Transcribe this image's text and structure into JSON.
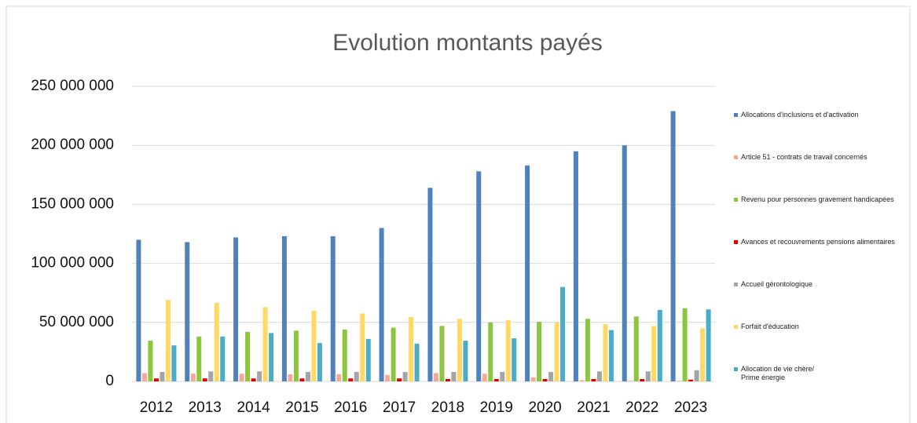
{
  "chart_data": {
    "type": "bar",
    "title": "Evolution montants payés",
    "categories": [
      "2012",
      "2013",
      "2014",
      "2015",
      "2016",
      "2017",
      "2018",
      "2019",
      "2020",
      "2021",
      "2022",
      "2023"
    ],
    "series": [
      {
        "name": "Allocations d'inclusions et d'activation",
        "color": "#4f81bd",
        "values": [
          120000000,
          118000000,
          122000000,
          123000000,
          123000000,
          130000000,
          164000000,
          178000000,
          183000000,
          195000000,
          200000000,
          229000000
        ]
      },
      {
        "name": "Article 51 - contrats de travail concernés",
        "color": "#f4a994",
        "values": [
          7000000,
          6500000,
          6500000,
          6000000,
          6000000,
          5500000,
          7000000,
          6500000,
          3500000,
          1000000,
          500000,
          500000
        ]
      },
      {
        "name": "Revenu pour personnes gravement handicapées",
        "color": "#8cc63f",
        "values": [
          34500000,
          38000000,
          42000000,
          43000000,
          44000000,
          45500000,
          47000000,
          50000000,
          50500000,
          53000000,
          55000000,
          62000000
        ]
      },
      {
        "name": "Avances et recouvrements pensions alimentaires",
        "color": "#e00000",
        "values": [
          2500000,
          2500000,
          2500000,
          2500000,
          2500000,
          2500000,
          2000000,
          2000000,
          2000000,
          2000000,
          2000000,
          1500000
        ]
      },
      {
        "name": "Accueil gérontologique",
        "color": "#a5a5a5",
        "values": [
          8000000,
          8500000,
          8500000,
          8000000,
          8000000,
          8000000,
          8000000,
          8000000,
          8000000,
          8500000,
          8500000,
          9500000
        ]
      },
      {
        "name": "Forfait d'éducation",
        "color": "#ffd966",
        "values": [
          69000000,
          66500000,
          63000000,
          60000000,
          57500000,
          54500000,
          53000000,
          52000000,
          50000000,
          48500000,
          47000000,
          45000000
        ]
      },
      {
        "name": "Allocation de vie chère/\nPrime énergie",
        "color": "#4bacc6",
        "values": [
          30500000,
          38000000,
          41000000,
          32500000,
          36000000,
          32000000,
          34500000,
          36500000,
          80000000,
          43500000,
          60500000,
          61000000
        ]
      }
    ],
    "ylim": [
      0,
      250000000
    ],
    "yticks": [
      0,
      {
        "value": 50000000,
        "label": "50 000 000"
      },
      {
        "value": 100000000,
        "label": "100 000 000"
      },
      {
        "value": 150000000,
        "label": "150 000 000"
      },
      {
        "value": 200000000,
        "label": "200 000 000"
      },
      {
        "value": 250000000,
        "label": "250 000 000"
      }
    ],
    "grid": true,
    "legend": "right"
  }
}
